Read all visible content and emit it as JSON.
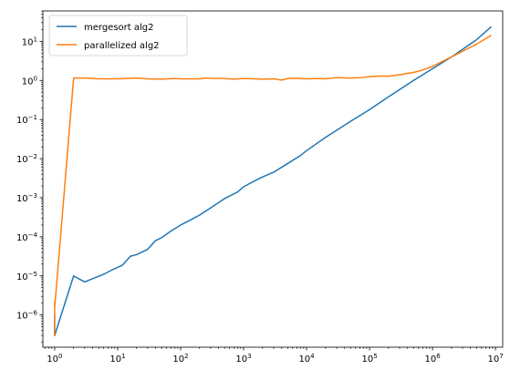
{
  "chart_data": {
    "type": "line",
    "xscale": "log",
    "yscale": "log",
    "xlim": [
      0.65,
      13000000
    ],
    "ylim": [
      1.5e-07,
      60
    ],
    "x_ticks": [
      {
        "value": 1,
        "base": "10",
        "exp": "0"
      },
      {
        "value": 10,
        "base": "10",
        "exp": "1"
      },
      {
        "value": 100,
        "base": "10",
        "exp": "2"
      },
      {
        "value": 1000,
        "base": "10",
        "exp": "3"
      },
      {
        "value": 10000,
        "base": "10",
        "exp": "4"
      },
      {
        "value": 100000,
        "base": "10",
        "exp": "5"
      },
      {
        "value": 1000000,
        "base": "10",
        "exp": "6"
      },
      {
        "value": 10000000,
        "base": "10",
        "exp": "7"
      }
    ],
    "y_ticks": [
      {
        "value": 1e-06,
        "base": "10",
        "exp": "−6"
      },
      {
        "value": 1e-05,
        "base": "10",
        "exp": "−5"
      },
      {
        "value": 0.0001,
        "base": "10",
        "exp": "−4"
      },
      {
        "value": 0.001,
        "base": "10",
        "exp": "−3"
      },
      {
        "value": 0.01,
        "base": "10",
        "exp": "−2"
      },
      {
        "value": 0.1,
        "base": "10",
        "exp": "−1"
      },
      {
        "value": 1,
        "base": "10",
        "exp": "0"
      },
      {
        "value": 10,
        "base": "10",
        "exp": "1"
      }
    ],
    "legend_position": "upper-left",
    "grid": false,
    "series": [
      {
        "name": "mergesort alg2",
        "color": "#1f77b4",
        "x": [
          1,
          1,
          1,
          2,
          3,
          4,
          6,
          8,
          12,
          16,
          20,
          30,
          40,
          50,
          70,
          100,
          150,
          200,
          300,
          500,
          800,
          1000,
          1500,
          2000,
          3000,
          5000,
          8000,
          10000,
          20000,
          50000,
          100000,
          200000,
          500000,
          1000000,
          2000000,
          5000000,
          8388608
        ],
        "y": [
          3e-07,
          1e-06,
          3e-07,
          1e-05,
          7e-06,
          8.5e-06,
          1.1e-05,
          1.4e-05,
          1.9e-05,
          3.2e-05,
          3.5e-05,
          4.8e-05,
          8e-05,
          9.5e-05,
          0.00014,
          0.0002,
          0.00028,
          0.00036,
          0.00055,
          0.00095,
          0.0014,
          0.0019,
          0.0027,
          0.0034,
          0.0045,
          0.0075,
          0.012,
          0.016,
          0.035,
          0.09,
          0.18,
          0.38,
          1.0,
          2.0,
          4.0,
          11.0,
          23.0
        ]
      },
      {
        "name": "parallelized alg2",
        "color": "#ff7f0e",
        "x": [
          1,
          1,
          1,
          1,
          2,
          3,
          5,
          8,
          10,
          20,
          30,
          50,
          80,
          100,
          150,
          200,
          250,
          300,
          500,
          700,
          1000,
          1500,
          2000,
          3000,
          4000,
          5000,
          7000,
          10000,
          15000,
          20000,
          30000,
          50000,
          70000,
          100000,
          150000,
          200000,
          300000,
          500000,
          700000,
          1000000,
          2000000,
          5000000,
          8388608
        ],
        "y": [
          3e-07,
          2.2e-06,
          3e-07,
          1.5e-06,
          1.15,
          1.15,
          1.1,
          1.1,
          1.1,
          1.15,
          1.1,
          1.08,
          1.12,
          1.1,
          1.1,
          1.1,
          1.15,
          1.13,
          1.12,
          1.08,
          1.12,
          1.1,
          1.08,
          1.1,
          1.02,
          1.12,
          1.13,
          1.1,
          1.12,
          1.1,
          1.18,
          1.15,
          1.18,
          1.25,
          1.3,
          1.28,
          1.4,
          1.6,
          1.85,
          2.3,
          4.0,
          8.5,
          14.0
        ]
      }
    ]
  }
}
